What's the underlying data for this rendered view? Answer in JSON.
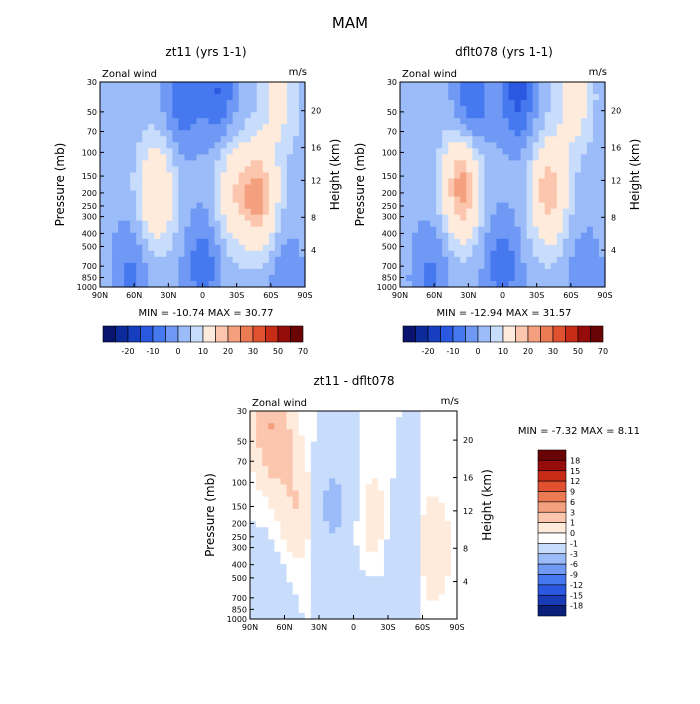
{
  "title": "MAM",
  "colors": {
    "neg": [
      "#0a1f7a",
      "#1a3bb8",
      "#2a58e0",
      "#4679f0",
      "#6f99f5",
      "#9bbcf8",
      "#c8dcfb"
    ],
    "pos": [
      "#ffebdc",
      "#fbc6ad",
      "#f4a07e",
      "#ec7a53",
      "#df512f",
      "#c72c16",
      "#960c0a"
    ],
    "ramp": [
      "#08146e",
      "#0c2a9a",
      "#183ec0",
      "#2a58e0",
      "#4679f0",
      "#6f99f5",
      "#9bbcf8",
      "#c8dcfb",
      "#ffebdc",
      "#fbc6ad",
      "#f4a07e",
      "#ec7a53",
      "#df512f",
      "#c72c16",
      "#960c0a",
      "#6a0404"
    ]
  },
  "chart_data": [
    {
      "type": "heatmap",
      "id": "p1",
      "title": "zt11  (yrs 1-1)",
      "variable": "Zonal wind",
      "units": "m/s",
      "ylabel": "Pressure (mb)",
      "ylabel_right": "Height (km)",
      "x_ticks": [
        "90N",
        "60N",
        "30N",
        "0",
        "30S",
        "60S",
        "90S"
      ],
      "y_ticks": [
        "30",
        "50",
        "70",
        "100",
        "150",
        "200",
        "250",
        "300",
        "400",
        "500",
        "700",
        "850",
        "1000"
      ],
      "y_ticks_right": [
        "20",
        "16",
        "12",
        "8",
        "4"
      ],
      "stats": "MIN = -10.74   MAX =  30.77",
      "colorbar_labels": [
        "-20",
        "-10",
        "0",
        "10",
        "20",
        "30",
        "50",
        "70"
      ],
      "blobs": [
        [
          -0.45,
          200,
          18
        ],
        [
          0.3,
          200,
          14
        ],
        [
          0.55,
          210,
          24
        ],
        [
          0.75,
          40,
          10
        ],
        [
          0.15,
          35,
          -12
        ],
        [
          -0.2,
          40,
          -10
        ],
        [
          0,
          700,
          -10
        ],
        [
          -0.7,
          800,
          -8
        ],
        [
          0.8,
          900,
          -6
        ]
      ]
    },
    {
      "type": "heatmap",
      "id": "p2",
      "title": "dflt078  (yrs 1-1)",
      "variable": "Zonal wind",
      "units": "m/s",
      "ylabel": "Pressure (mb)",
      "ylabel_right": "Height (km)",
      "x_ticks": [
        "90N",
        "60N",
        "30N",
        "0",
        "30S",
        "60S",
        "90S"
      ],
      "y_ticks": [
        "30",
        "50",
        "70",
        "100",
        "150",
        "200",
        "250",
        "300",
        "400",
        "500",
        "700",
        "850",
        "1000"
      ],
      "y_ticks_right": [
        "20",
        "16",
        "12",
        "8",
        "4"
      ],
      "stats": "MIN = -12.94   MAX =  31.57",
      "colorbar_labels": [
        "-20",
        "-10",
        "0",
        "10",
        "20",
        "30",
        "50",
        "70"
      ],
      "blobs": [
        [
          -0.4,
          180,
          26
        ],
        [
          0.45,
          200,
          22
        ],
        [
          0.7,
          40,
          12
        ],
        [
          0.15,
          35,
          -14
        ],
        [
          -0.3,
          40,
          -12
        ],
        [
          0,
          700,
          -10
        ],
        [
          -0.7,
          850,
          -8
        ],
        [
          0.8,
          900,
          -6
        ]
      ]
    },
    {
      "type": "heatmap",
      "id": "p3",
      "title": "zt11 - dflt078",
      "variable": "Zonal wind",
      "units": "m/s",
      "ylabel": "Pressure (mb)",
      "ylabel_right": "Height (km)",
      "x_ticks": [
        "90N",
        "60N",
        "30N",
        "0",
        "30S",
        "60S",
        "90S"
      ],
      "y_ticks": [
        "30",
        "50",
        "70",
        "100",
        "150",
        "200",
        "250",
        "300",
        "400",
        "500",
        "700",
        "850",
        "1000"
      ],
      "y_ticks_right": [
        "20",
        "16",
        "12",
        "8",
        "4"
      ],
      "stats": "MIN =   -7.32   MAX =    8.11",
      "colorbar_labels": [
        "18",
        "15",
        "12",
        "9",
        "6",
        "3",
        "1",
        "0",
        "-1",
        "-3",
        "-6",
        "-9",
        "-12",
        "-15",
        "-18"
      ],
      "blobs": [
        [
          -0.78,
          40,
          6
        ],
        [
          -0.55,
          150,
          3
        ],
        [
          0.2,
          200,
          2
        ],
        [
          0.75,
          300,
          3
        ],
        [
          -0.2,
          150,
          -4
        ],
        [
          0.5,
          300,
          -3
        ],
        [
          -0.8,
          600,
          -1
        ],
        [
          0.1,
          800,
          -1
        ]
      ]
    }
  ]
}
